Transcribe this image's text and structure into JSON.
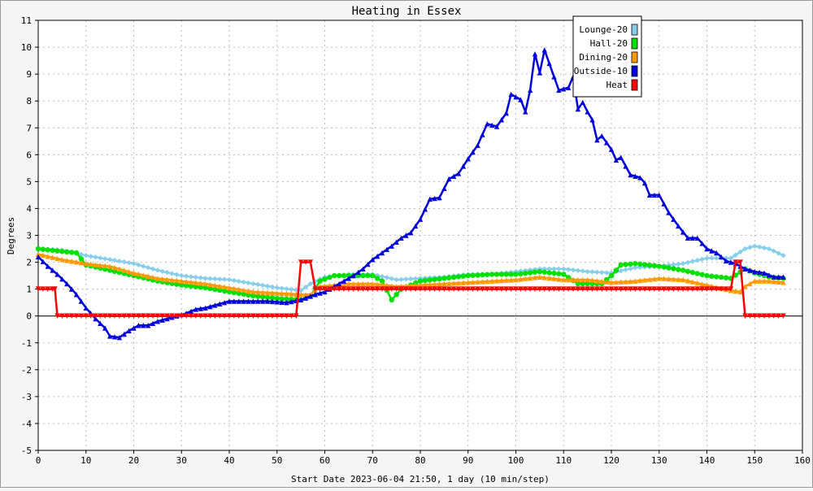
{
  "chart_data": {
    "type": "line",
    "title": "Heating in Essex",
    "xlabel": "Start Date 2023-06-04 21:50, 1 day (10 min/step)",
    "ylabel": "Degrees",
    "xlim": [
      0,
      160
    ],
    "ylim": [
      -5,
      11
    ],
    "x_ticks": [
      0,
      10,
      20,
      30,
      40,
      50,
      60,
      70,
      80,
      90,
      100,
      110,
      120,
      130,
      140,
      150,
      160
    ],
    "y_ticks": [
      -5,
      -4,
      -3,
      -2,
      -1,
      0,
      1,
      2,
      3,
      4,
      5,
      6,
      7,
      8,
      9,
      10,
      11
    ],
    "grid": true,
    "legend_position": "top-right",
    "series": [
      {
        "name": "Lounge-20",
        "color": "#87ceeb",
        "marker": "diamond",
        "points": [
          [
            0,
            2.5
          ],
          [
            5,
            2.45
          ],
          [
            10,
            2.25
          ],
          [
            15,
            2.1
          ],
          [
            20,
            1.95
          ],
          [
            25,
            1.7
          ],
          [
            30,
            1.5
          ],
          [
            35,
            1.4
          ],
          [
            40,
            1.35
          ],
          [
            45,
            1.2
          ],
          [
            50,
            1.05
          ],
          [
            55,
            0.95
          ],
          [
            57,
            1.2
          ],
          [
            60,
            1.45
          ],
          [
            65,
            1.55
          ],
          [
            70,
            1.55
          ],
          [
            75,
            1.35
          ],
          [
            80,
            1.4
          ],
          [
            85,
            1.45
          ],
          [
            90,
            1.55
          ],
          [
            95,
            1.55
          ],
          [
            100,
            1.65
          ],
          [
            105,
            1.75
          ],
          [
            110,
            1.75
          ],
          [
            115,
            1.65
          ],
          [
            120,
            1.6
          ],
          [
            125,
            1.8
          ],
          [
            130,
            1.85
          ],
          [
            135,
            1.95
          ],
          [
            140,
            2.15
          ],
          [
            145,
            2.15
          ],
          [
            148,
            2.5
          ],
          [
            150,
            2.6
          ],
          [
            153,
            2.5
          ],
          [
            156,
            2.25
          ]
        ]
      },
      {
        "name": "Hall-20",
        "color": "#00e000",
        "marker": "circle",
        "points": [
          [
            0,
            2.5
          ],
          [
            5,
            2.4
          ],
          [
            8,
            2.35
          ],
          [
            10,
            1.9
          ],
          [
            15,
            1.7
          ],
          [
            20,
            1.5
          ],
          [
            25,
            1.3
          ],
          [
            30,
            1.15
          ],
          [
            35,
            1.05
          ],
          [
            40,
            0.9
          ],
          [
            45,
            0.75
          ],
          [
            50,
            0.65
          ],
          [
            55,
            0.6
          ],
          [
            57,
            0.75
          ],
          [
            59,
            1.3
          ],
          [
            62,
            1.5
          ],
          [
            65,
            1.5
          ],
          [
            70,
            1.5
          ],
          [
            72,
            1.3
          ],
          [
            74,
            0.6
          ],
          [
            76,
            1.0
          ],
          [
            80,
            1.3
          ],
          [
            85,
            1.4
          ],
          [
            90,
            1.5
          ],
          [
            95,
            1.55
          ],
          [
            100,
            1.55
          ],
          [
            105,
            1.65
          ],
          [
            110,
            1.55
          ],
          [
            113,
            1.2
          ],
          [
            118,
            1.2
          ],
          [
            120,
            1.5
          ],
          [
            122,
            1.9
          ],
          [
            125,
            1.95
          ],
          [
            130,
            1.85
          ],
          [
            135,
            1.7
          ],
          [
            140,
            1.5
          ],
          [
            145,
            1.4
          ],
          [
            148,
            1.75
          ],
          [
            150,
            1.6
          ],
          [
            153,
            1.45
          ],
          [
            156,
            1.4
          ]
        ]
      },
      {
        "name": "Dining-20",
        "color": "#ff9900",
        "marker": "triangle-up",
        "points": [
          [
            0,
            2.3
          ],
          [
            5,
            2.1
          ],
          [
            10,
            1.95
          ],
          [
            15,
            1.85
          ],
          [
            20,
            1.6
          ],
          [
            25,
            1.4
          ],
          [
            30,
            1.3
          ],
          [
            35,
            1.2
          ],
          [
            40,
            1.05
          ],
          [
            45,
            0.9
          ],
          [
            50,
            0.85
          ],
          [
            55,
            0.8
          ],
          [
            57,
            0.8
          ],
          [
            59,
            1.1
          ],
          [
            62,
            1.15
          ],
          [
            65,
            1.2
          ],
          [
            70,
            1.2
          ],
          [
            75,
            1.1
          ],
          [
            80,
            1.15
          ],
          [
            85,
            1.2
          ],
          [
            90,
            1.25
          ],
          [
            95,
            1.3
          ],
          [
            100,
            1.35
          ],
          [
            105,
            1.45
          ],
          [
            110,
            1.35
          ],
          [
            115,
            1.35
          ],
          [
            120,
            1.25
          ],
          [
            125,
            1.3
          ],
          [
            130,
            1.4
          ],
          [
            135,
            1.35
          ],
          [
            140,
            1.15
          ],
          [
            145,
            0.95
          ],
          [
            147,
            0.9
          ],
          [
            148,
            1.1
          ],
          [
            150,
            1.3
          ],
          [
            153,
            1.3
          ],
          [
            156,
            1.25
          ]
        ]
      },
      {
        "name": "Outside-10",
        "color": "#0000dd",
        "marker": "triangle-up",
        "points": [
          [
            0,
            2.2
          ],
          [
            2,
            1.85
          ],
          [
            4,
            1.55
          ],
          [
            6,
            1.2
          ],
          [
            8,
            0.8
          ],
          [
            10,
            0.3
          ],
          [
            12,
            -0.1
          ],
          [
            14,
            -0.45
          ],
          [
            15,
            -0.75
          ],
          [
            17,
            -0.8
          ],
          [
            19,
            -0.55
          ],
          [
            21,
            -0.35
          ],
          [
            23,
            -0.35
          ],
          [
            25,
            -0.2
          ],
          [
            27,
            -0.1
          ],
          [
            29,
            0.0
          ],
          [
            31,
            0.1
          ],
          [
            33,
            0.25
          ],
          [
            35,
            0.3
          ],
          [
            37,
            0.4
          ],
          [
            40,
            0.55
          ],
          [
            44,
            0.55
          ],
          [
            48,
            0.55
          ],
          [
            52,
            0.5
          ],
          [
            55,
            0.6
          ],
          [
            58,
            0.8
          ],
          [
            60,
            0.9
          ],
          [
            62,
            1.1
          ],
          [
            64,
            1.3
          ],
          [
            66,
            1.5
          ],
          [
            68,
            1.75
          ],
          [
            70,
            2.1
          ],
          [
            72,
            2.35
          ],
          [
            74,
            2.6
          ],
          [
            76,
            2.9
          ],
          [
            78,
            3.1
          ],
          [
            80,
            3.6
          ],
          [
            82,
            4.35
          ],
          [
            84,
            4.4
          ],
          [
            86,
            5.1
          ],
          [
            88,
            5.3
          ],
          [
            90,
            5.85
          ],
          [
            92,
            6.35
          ],
          [
            94,
            7.15
          ],
          [
            96,
            7.05
          ],
          [
            98,
            7.55
          ],
          [
            99,
            8.25
          ],
          [
            101,
            8.05
          ],
          [
            102,
            7.6
          ],
          [
            103,
            8.4
          ],
          [
            104,
            9.75
          ],
          [
            105,
            9.05
          ],
          [
            106,
            9.9
          ],
          [
            107,
            9.4
          ],
          [
            108,
            8.9
          ],
          [
            109,
            8.4
          ],
          [
            111,
            8.5
          ],
          [
            112,
            8.9
          ],
          [
            113,
            7.7
          ],
          [
            114,
            7.95
          ],
          [
            115,
            7.6
          ],
          [
            116,
            7.3
          ],
          [
            117,
            6.55
          ],
          [
            118,
            6.7
          ],
          [
            120,
            6.2
          ],
          [
            121,
            5.8
          ],
          [
            122,
            5.9
          ],
          [
            124,
            5.25
          ],
          [
            126,
            5.15
          ],
          [
            127,
            4.95
          ],
          [
            128,
            4.5
          ],
          [
            130,
            4.5
          ],
          [
            132,
            3.85
          ],
          [
            134,
            3.35
          ],
          [
            136,
            2.9
          ],
          [
            138,
            2.9
          ],
          [
            140,
            2.5
          ],
          [
            142,
            2.35
          ],
          [
            144,
            2.05
          ],
          [
            146,
            1.95
          ],
          [
            148,
            1.75
          ],
          [
            150,
            1.65
          ],
          [
            152,
            1.6
          ],
          [
            154,
            1.45
          ],
          [
            156,
            1.45
          ]
        ]
      },
      {
        "name": "Heat",
        "color": "#ff0000",
        "marker": "triangle-down",
        "points": [
          [
            0,
            1
          ],
          [
            3.5,
            1
          ],
          [
            4,
            0
          ],
          [
            54,
            0
          ],
          [
            55,
            2
          ],
          [
            57,
            2
          ],
          [
            58,
            1
          ],
          [
            145,
            1
          ],
          [
            146,
            2
          ],
          [
            147,
            2
          ],
          [
            148,
            0
          ],
          [
            156,
            0
          ]
        ]
      }
    ]
  }
}
